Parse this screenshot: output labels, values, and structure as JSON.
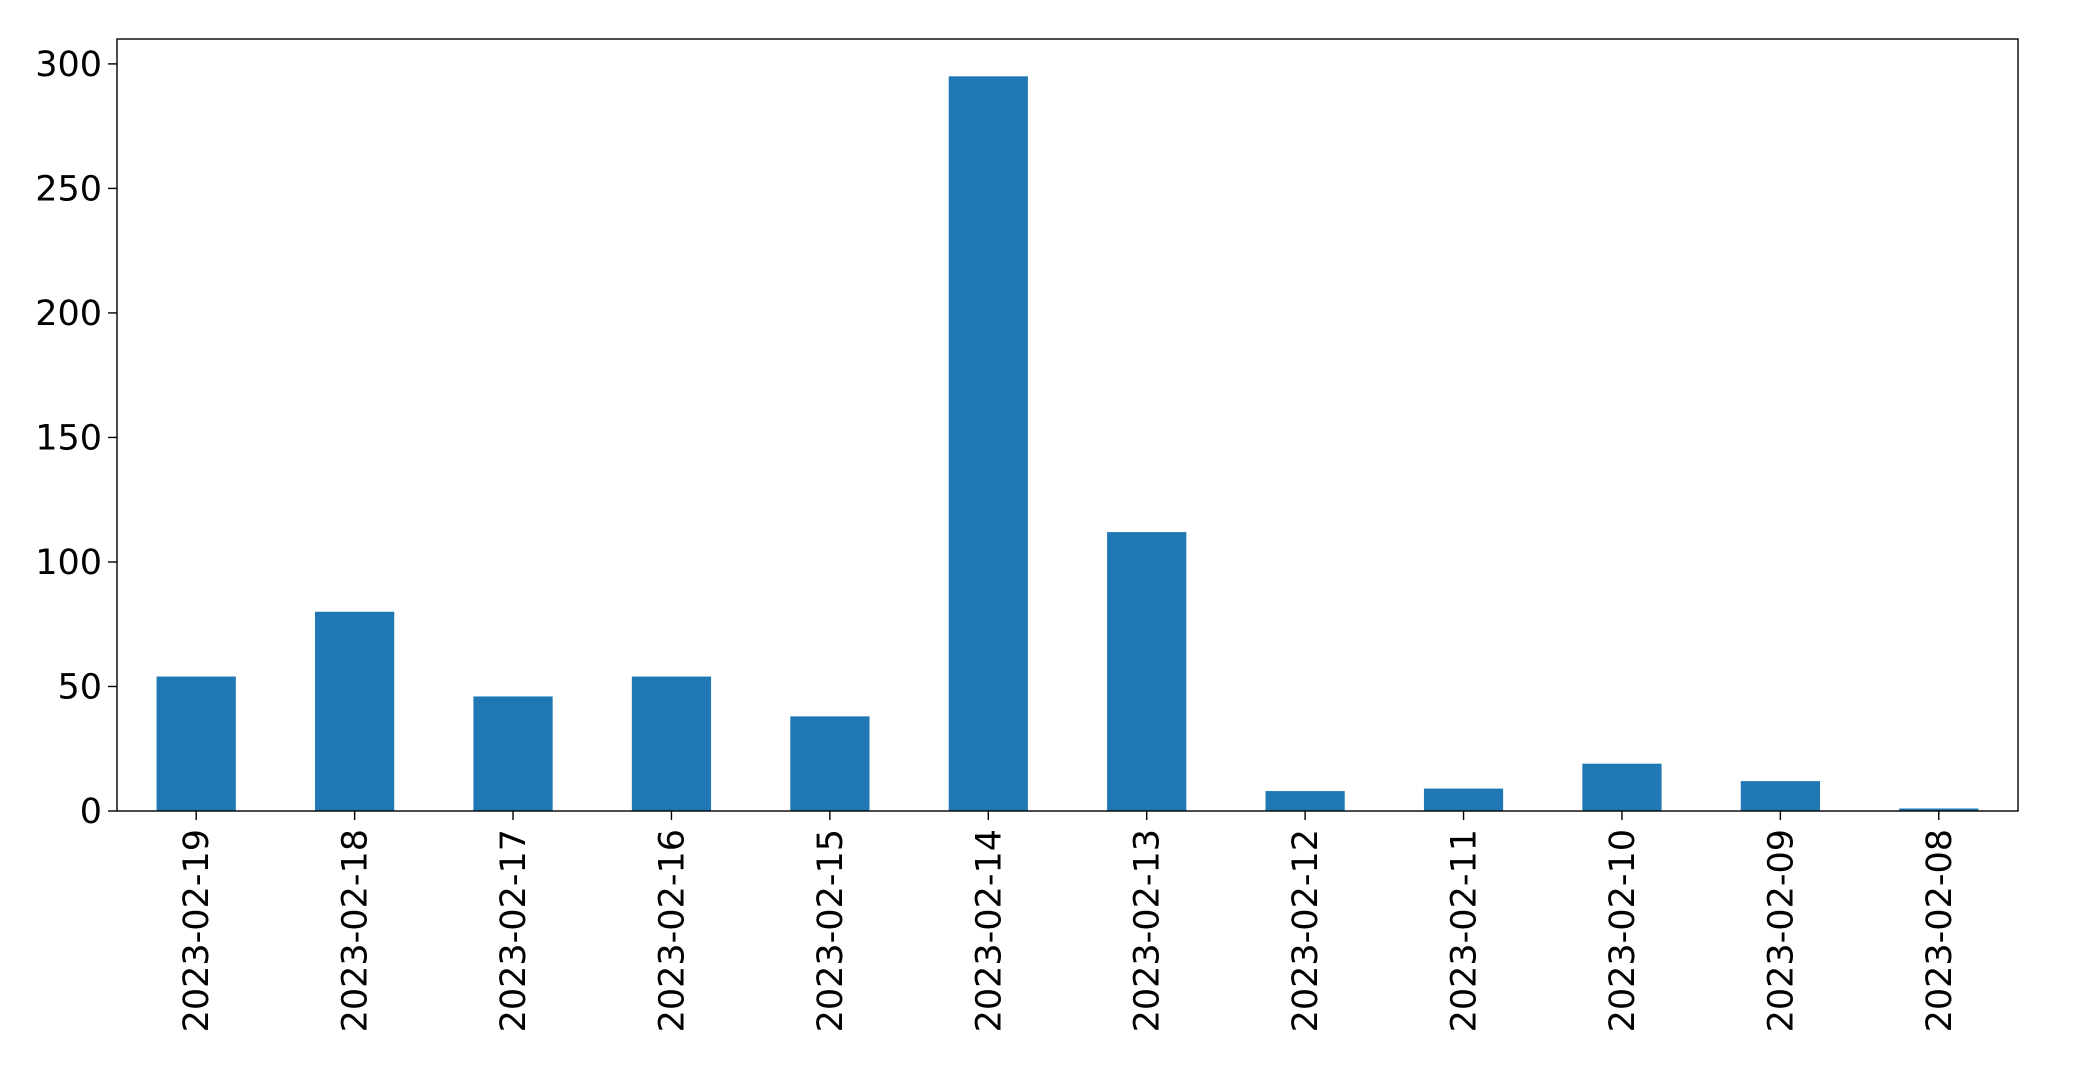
{
  "chart_data": {
    "type": "bar",
    "title": "",
    "xlabel": "",
    "ylabel": "",
    "categories": [
      "2023-02-19",
      "2023-02-18",
      "2023-02-17",
      "2023-02-16",
      "2023-02-15",
      "2023-02-14",
      "2023-02-13",
      "2023-02-12",
      "2023-02-11",
      "2023-02-10",
      "2023-02-09",
      "2023-02-08"
    ],
    "values": [
      54,
      80,
      46,
      54,
      38,
      295,
      112,
      8,
      9,
      19,
      12,
      1
    ],
    "ylim": [
      0,
      310
    ],
    "yticks": [
      0,
      50,
      100,
      150,
      200,
      250,
      300
    ],
    "grid": false,
    "legend": "none",
    "bar_color": "#1f77b4"
  }
}
